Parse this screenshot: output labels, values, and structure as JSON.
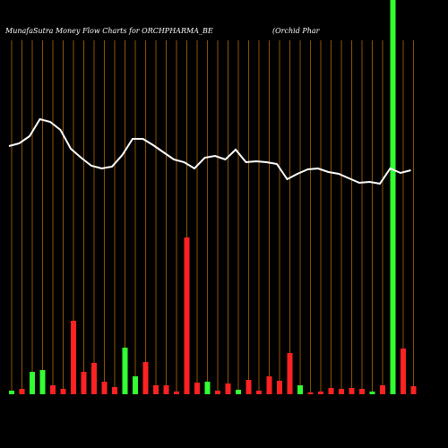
{
  "chart_data": {
    "type": "bar",
    "title": "MunafaSutra  Money Flow  Charts for ORCHPHARMA_BE",
    "subtitle": "(Orchid Phar",
    "ylim": [
      0,
      440
    ],
    "grid_color": "#b36b00",
    "series": [
      {
        "name": "Money Flow",
        "colors": [
          "#33ff33",
          "#ff2222",
          "#33ff33",
          "#33ff33",
          "#ff2222",
          "#ff2222",
          "#ff2222",
          "#ff2222",
          "#ff2222",
          "#ff2222",
          "#ff2222",
          "#33ff33",
          "#33ff33",
          "#ff2222",
          "#ff2222",
          "#ff2222",
          "#ff2222",
          "#ff2222",
          "#ff2222",
          "#33ff33",
          "#ff2222",
          "#ff2222",
          "#33ff33",
          "#ff2222",
          "#ff2222",
          "#ff2222",
          "#ff2222",
          "#ff2222",
          "#33ff33",
          "#ff2222",
          "#ff2222",
          "#ff2222",
          "#ff2222",
          "#ff2222",
          "#ff2222",
          "#33ff33",
          "#ff2222",
          "#33ff33",
          "#ff2222",
          "#ff2222"
        ],
        "values": [
          4,
          6,
          25,
          27,
          10,
          6,
          82,
          25,
          35,
          14,
          8,
          52,
          20,
          36,
          10,
          10,
          3,
          175,
          13,
          14,
          4,
          12,
          5,
          16,
          4,
          20,
          15,
          46,
          10,
          2,
          3,
          7,
          6,
          7,
          6,
          3,
          10,
          440,
          51,
          9
        ]
      },
      {
        "name": "Price",
        "color": "#ffffff",
        "values": [
          277,
          280,
          288,
          307,
          304,
          295,
          274,
          264,
          255,
          252,
          254,
          267,
          285,
          285,
          278,
          270,
          262,
          259,
          252,
          264,
          266,
          262,
          273,
          259,
          260,
          259,
          257,
          240,
          246,
          251,
          252,
          248,
          246,
          241,
          236,
          237,
          235,
          252,
          247,
          250
        ]
      }
    ]
  }
}
